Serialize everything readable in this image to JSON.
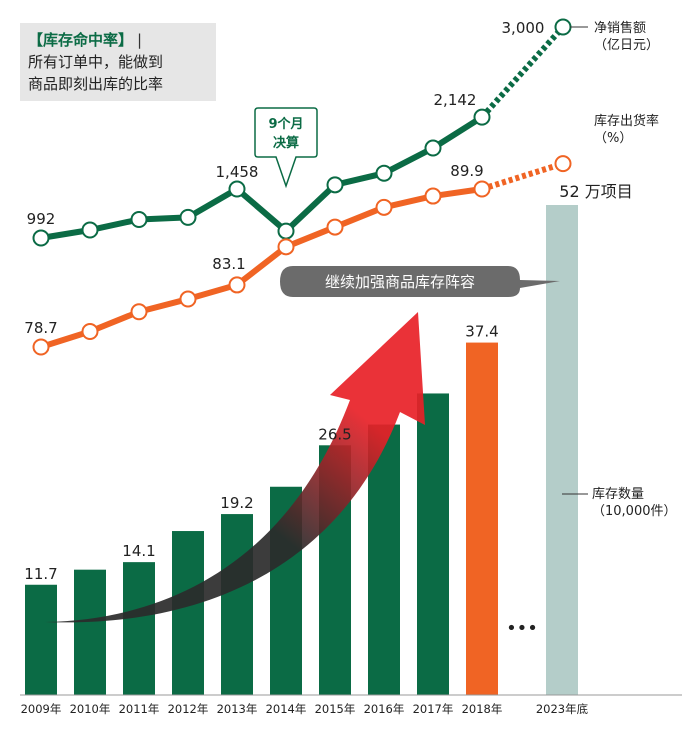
{
  "legend": {
    "heading": "【库存命中率】",
    "line1": "所有订单中，能做到",
    "line2": "商品即刻出库的比率"
  },
  "colors": {
    "green": "#0b6b45",
    "orange": "#f06424",
    "gray_bar": "#b4cdc9",
    "arrow_red": "#e82027",
    "arrow_dark": "#2b2b2b",
    "banner": "#6b6b6b"
  },
  "chart_data": {
    "type": "bar",
    "categories": [
      "2009年",
      "2010年",
      "2011年",
      "2012年",
      "2013年",
      "2014年",
      "2015年",
      "2016年",
      "2017年",
      "2018年",
      "2023年底"
    ],
    "series": [
      {
        "name": "库存数量",
        "unit": "（10,000件）",
        "values": [
          11.7,
          13.3,
          14.1,
          17.4,
          19.2,
          22.1,
          26.5,
          28.7,
          32.0,
          37.4,
          52
        ],
        "labels": [
          "11.7",
          "",
          "14.1",
          "",
          "19.2",
          "",
          "26.5",
          "",
          "",
          "37.4",
          "52 万项目"
        ]
      },
      {
        "name": "净销售额",
        "unit": "（亿日元）",
        "type": "line",
        "values": [
          992,
          1068,
          1168,
          1188,
          1458,
          1058,
          1498,
          1608,
          1848,
          2142,
          3000
        ],
        "labels": [
          "992",
          "",
          "",
          "",
          "1,458",
          "",
          "",
          "",
          "",
          "2,142",
          "3,000"
        ]
      },
      {
        "name": "库存出货率",
        "unit": "（%）",
        "type": "line",
        "values": [
          78.7,
          79.8,
          81.2,
          82.1,
          83.1,
          85.8,
          87.2,
          88.6,
          89.4,
          89.9,
          91.7
        ],
        "labels": [
          "78.7",
          "",
          "",
          "",
          "83.1",
          "",
          "",
          "",
          "",
          "89.9",
          ""
        ]
      }
    ],
    "annotations": {
      "fiscal_note_line1": "9个月",
      "fiscal_note_line2": "决算",
      "banner": "继续加强商品库存阵容",
      "ellipsis": "•••"
    },
    "ylim_bars": [
      0,
      57
    ]
  }
}
